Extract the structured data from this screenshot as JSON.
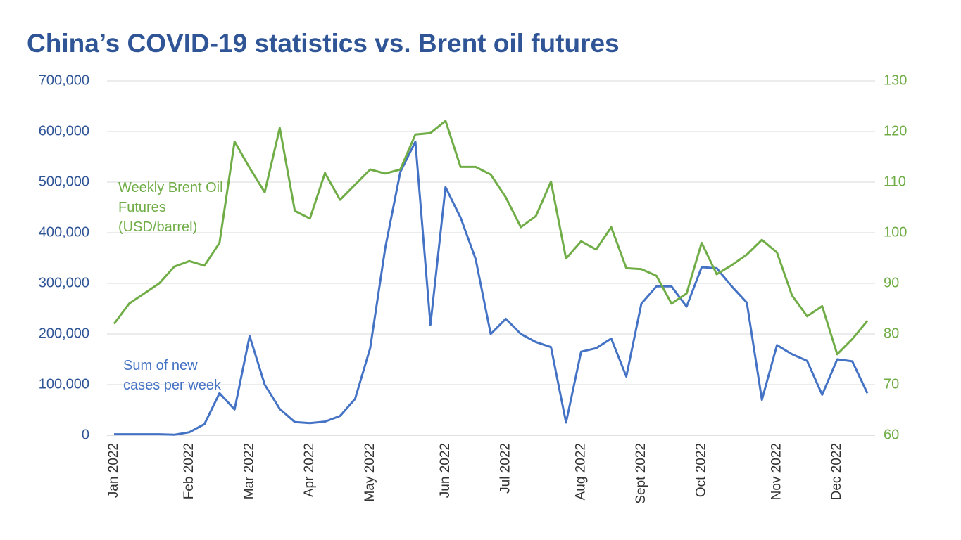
{
  "chart_data": {
    "type": "line",
    "title": "China’s COVID-19 statistics vs. Brent oil futures",
    "categories": [
      "Jan 2022",
      null,
      null,
      null,
      null,
      "Feb 2022",
      null,
      null,
      null,
      "Mar 2022",
      null,
      null,
      null,
      "Apr 2022",
      null,
      null,
      null,
      "May 2022",
      null,
      null,
      null,
      null,
      "Jun 2022",
      null,
      null,
      null,
      "Jul 2022",
      null,
      null,
      null,
      null,
      "Aug 2022",
      null,
      null,
      null,
      "Sept 2022",
      null,
      null,
      null,
      "Oct 2022",
      null,
      null,
      null,
      null,
      "Nov 2022",
      null,
      null,
      null,
      "Dec 2022",
      null,
      null
    ],
    "series": [
      {
        "name": "Sum of new cases per week",
        "color": "#4472c4",
        "axis": "y",
        "values": [
          2000,
          2000,
          2000,
          2000,
          1000,
          6000,
          22000,
          83000,
          51000,
          196000,
          100000,
          52000,
          26000,
          24000,
          27000,
          38000,
          72000,
          172000,
          370000,
          520000,
          580000,
          218000,
          490000,
          430000,
          348000,
          200000,
          230000,
          200000,
          184000,
          174000,
          25000,
          165000,
          172000,
          191000,
          116000,
          260000,
          294000,
          294000,
          254000,
          332000,
          330000,
          294000,
          262000,
          70000,
          178000,
          160000,
          147000,
          80000,
          150000,
          146000,
          83000
        ]
      },
      {
        "name": "Weekly Brent Oil Futures (USD/barrel)",
        "color": "#70ad47",
        "axis": "y2",
        "values": [
          82,
          86,
          88,
          90,
          93.3,
          94.4,
          93.5,
          98,
          118,
          112.8,
          108,
          120.7,
          104.3,
          102.8,
          111.8,
          106.5,
          109.5,
          112.5,
          111.7,
          112.5,
          119.4,
          119.7,
          122.1,
          113,
          113,
          111.5,
          107,
          101.1,
          103.3,
          110.1,
          94.9,
          98.3,
          96.7,
          101.1,
          93,
          92.8,
          91.5,
          86,
          88,
          98,
          91.8,
          93.6,
          95.7,
          98.6,
          96.1,
          87.6,
          83.5,
          85.5,
          76,
          79,
          82.6
        ]
      }
    ],
    "ylim": [
      0,
      700000
    ],
    "yticks": [
      0,
      {
        "value": 100000,
        "label": "100,000"
      },
      {
        "value": 200000,
        "label": "200,000"
      },
      {
        "value": 300000,
        "label": "300,000"
      },
      {
        "value": 400000,
        "label": "400,000"
      },
      {
        "value": 500000,
        "label": "500,000"
      },
      {
        "value": 600000,
        "label": "600,000"
      },
      {
        "value": 700000,
        "label": "700,000"
      }
    ],
    "y2lim": [
      60,
      130
    ],
    "y2ticks": [
      60,
      70,
      80,
      90,
      100,
      110,
      120,
      130
    ],
    "grid": true
  }
}
